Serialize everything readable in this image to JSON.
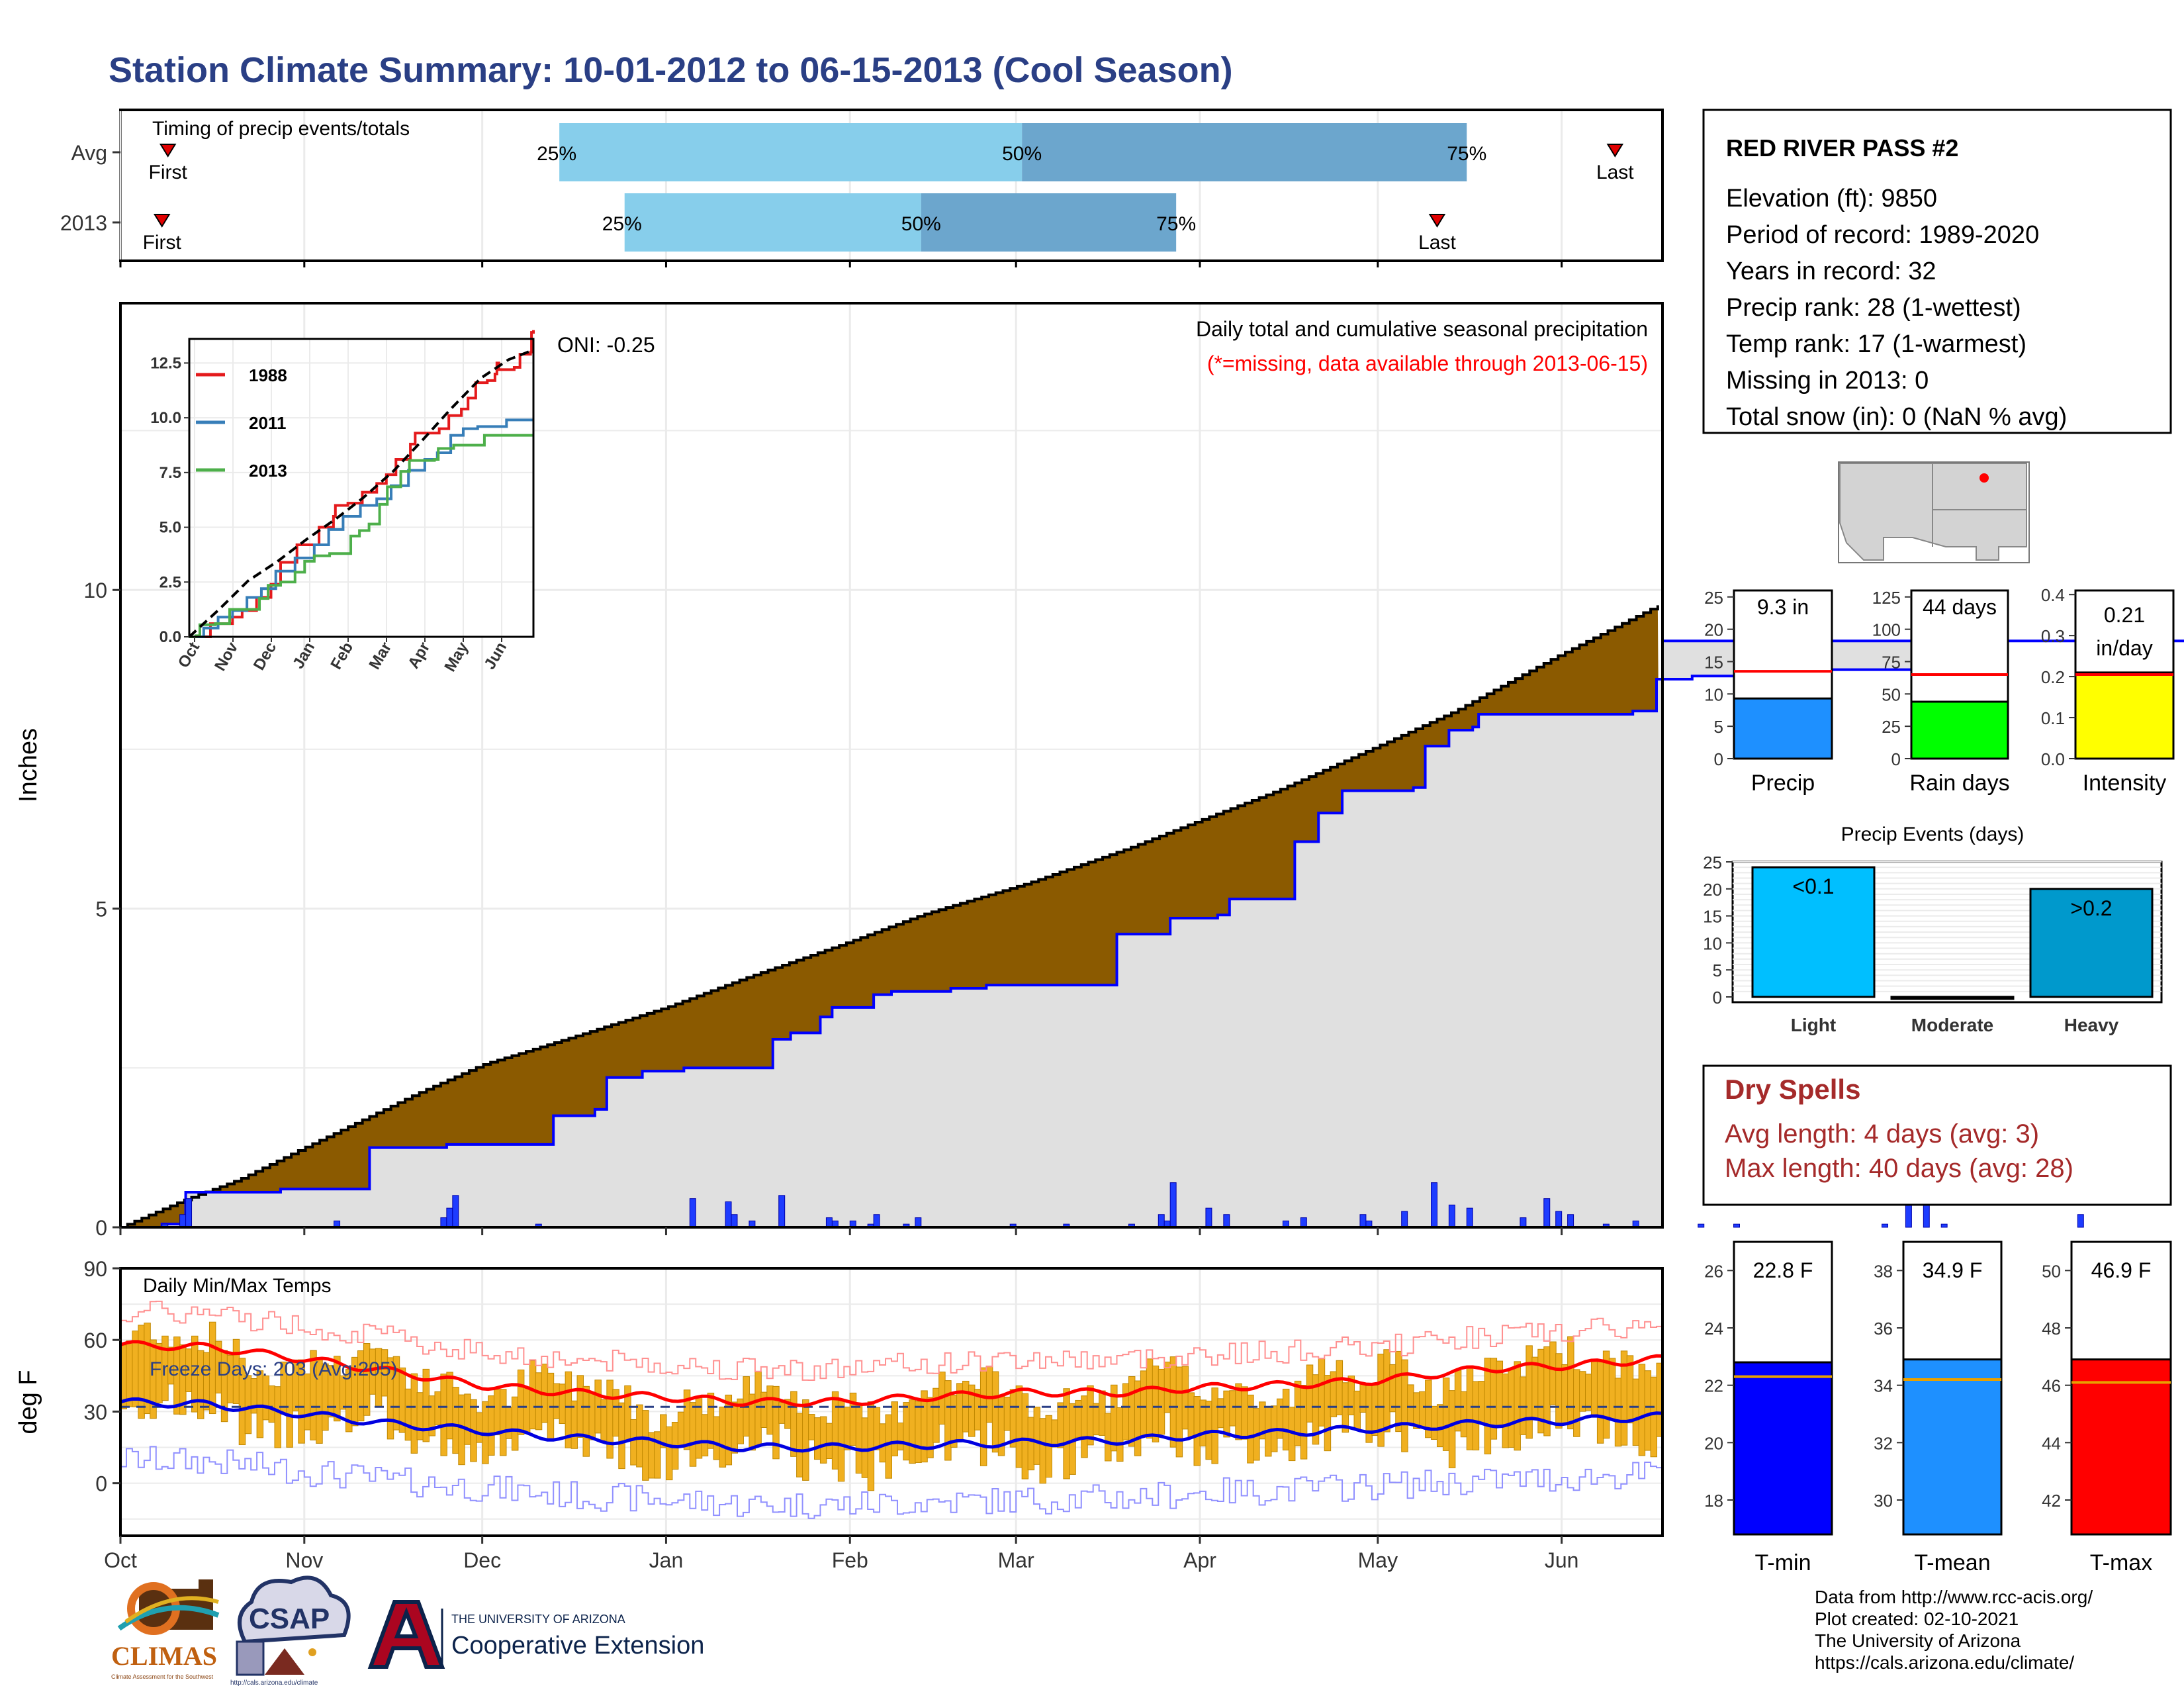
{
  "title": "Station Climate Summary: 10-01-2012 to 06-15-2013 (Cool Season)",
  "months": [
    "Oct",
    "Nov",
    "Dec",
    "Jan",
    "Feb",
    "Mar",
    "Apr",
    "May",
    "Jun"
  ],
  "colors": {
    "title": "#2A3F85",
    "dark_red": "#A52A2A",
    "brown": "#8B5A00",
    "blue_line": "#0000FF",
    "light_gray": "#E0E0E0",
    "gold": "#F0B020"
  },
  "timing": {
    "caption": "Timing of precip events/totals",
    "rows": [
      {
        "label": "Avg",
        "first_label": "First",
        "last_label": "Last",
        "p25_label": "25%",
        "p50_label": "50%",
        "p75_label": "75%",
        "first_day": 8,
        "p25_day": 74,
        "p50_day": 152,
        "p75_day": 227,
        "last_day": 252
      },
      {
        "label": "2013",
        "first_label": "First",
        "last_label": "Last",
        "p25_label": "25%",
        "p50_label": "50%",
        "p75_label": "75%",
        "first_day": 7,
        "p25_day": 85,
        "p50_day": 135,
        "p75_day": 178,
        "last_day": 222
      }
    ]
  },
  "precip_panel": {
    "ylabel": "Inches",
    "yticks": [
      0,
      5,
      10
    ],
    "ylim": [
      0,
      14.5
    ],
    "caption": "Daily total and cumulative seasonal precipitation",
    "missing_note": "(*=missing, data available through 2013-06-15)",
    "avg_cumulative": [
      [
        0,
        0
      ],
      [
        10,
        0.4
      ],
      [
        20,
        0.75
      ],
      [
        31,
        1.25
      ],
      [
        40,
        1.65
      ],
      [
        50,
        2.1
      ],
      [
        61,
        2.55
      ],
      [
        75,
        2.95
      ],
      [
        92,
        3.45
      ],
      [
        105,
        3.9
      ],
      [
        122,
        4.45
      ],
      [
        135,
        4.9
      ],
      [
        153,
        5.4
      ],
      [
        170,
        5.95
      ],
      [
        181,
        6.35
      ],
      [
        195,
        6.85
      ],
      [
        212,
        7.55
      ],
      [
        225,
        8.1
      ],
      [
        242,
        8.95
      ],
      [
        258,
        9.7
      ],
      [
        272,
        10.4
      ],
      [
        287,
        11.2
      ],
      [
        303,
        11.8
      ],
      [
        317,
        12.2
      ],
      [
        332,
        12.65
      ],
      [
        348,
        12.9
      ],
      [
        358,
        13.1
      ]
    ],
    "cumulative_2013": [
      [
        0,
        0
      ],
      [
        7,
        0.05
      ],
      [
        11,
        0.55
      ],
      [
        27,
        0.6
      ],
      [
        41,
        0.6
      ],
      [
        42,
        1.25
      ],
      [
        55,
        1.3
      ],
      [
        72,
        1.3
      ],
      [
        73,
        1.75
      ],
      [
        80,
        1.85
      ],
      [
        82,
        2.35
      ],
      [
        88,
        2.45
      ],
      [
        95,
        2.5
      ],
      [
        110,
        2.95
      ],
      [
        113,
        3.05
      ],
      [
        118,
        3.3
      ],
      [
        120,
        3.45
      ],
      [
        127,
        3.65
      ],
      [
        130,
        3.7
      ],
      [
        140,
        3.75
      ],
      [
        146,
        3.8
      ],
      [
        166,
        3.8
      ],
      [
        168,
        4.6
      ],
      [
        177,
        4.85
      ],
      [
        185,
        4.9
      ],
      [
        187,
        5.15
      ],
      [
        196,
        5.15
      ],
      [
        198,
        6.05
      ],
      [
        202,
        6.5
      ],
      [
        206,
        6.85
      ],
      [
        218,
        6.9
      ],
      [
        220,
        7.55
      ],
      [
        224,
        7.8
      ],
      [
        228,
        7.85
      ],
      [
        229,
        8.05
      ],
      [
        255,
        8.1
      ],
      [
        259,
        8.6
      ],
      [
        265,
        8.65
      ],
      [
        275,
        8.75
      ],
      [
        303,
        8.85
      ],
      [
        307,
        9.2
      ],
      [
        358,
        9.2
      ]
    ],
    "daily_2013": [
      [
        7,
        0.05
      ],
      [
        10,
        0.2
      ],
      [
        11,
        0.45
      ],
      [
        36,
        0.1
      ],
      [
        54,
        0.15
      ],
      [
        55,
        0.3
      ],
      [
        56,
        0.5
      ],
      [
        70,
        0.05
      ],
      [
        96,
        0.45
      ],
      [
        102,
        0.4
      ],
      [
        103,
        0.2
      ],
      [
        106,
        0.1
      ],
      [
        111,
        0.5
      ],
      [
        119,
        0.15
      ],
      [
        120,
        0.1
      ],
      [
        123,
        0.1
      ],
      [
        126,
        0.05
      ],
      [
        127,
        0.2
      ],
      [
        132,
        0.05
      ],
      [
        134,
        0.15
      ],
      [
        150,
        0.05
      ],
      [
        159,
        0.05
      ],
      [
        170,
        0.05
      ],
      [
        175,
        0.2
      ],
      [
        176,
        0.1
      ],
      [
        177,
        0.7
      ],
      [
        183,
        0.3
      ],
      [
        186,
        0.2
      ],
      [
        196,
        0.1
      ],
      [
        199,
        0.15
      ],
      [
        209,
        0.2
      ],
      [
        210,
        0.1
      ],
      [
        216,
        0.25
      ],
      [
        221,
        0.7
      ],
      [
        224,
        0.35
      ],
      [
        227,
        0.3
      ],
      [
        236,
        0.15
      ],
      [
        240,
        0.45
      ],
      [
        242,
        0.25
      ],
      [
        244,
        0.2
      ],
      [
        250,
        0.05
      ],
      [
        255,
        0.1
      ],
      [
        266,
        0.05
      ],
      [
        272,
        0.05
      ],
      [
        297,
        0.05
      ],
      [
        301,
        0.45
      ],
      [
        304,
        0.35
      ],
      [
        307,
        0.05
      ],
      [
        330,
        0.2
      ]
    ]
  },
  "oni_label": "ONI: -0.25",
  "inset": {
    "yticks": [
      "0.0",
      "2.5",
      "5.0",
      "7.5",
      "10.0",
      "12.5"
    ],
    "ytick_values": [
      0,
      2.5,
      5,
      7.5,
      10,
      12.5
    ],
    "months": [
      "Oct",
      "Nov",
      "Dec",
      "Jan",
      "Feb",
      "Mar",
      "Apr",
      "May",
      "Jun"
    ],
    "series": [
      {
        "name": "1988",
        "color": "#E41A1C",
        "values": [
          [
            0,
            0
          ],
          [
            20,
            0
          ],
          [
            22,
            0.6
          ],
          [
            45,
            0.9
          ],
          [
            55,
            1.2
          ],
          [
            70,
            1.8
          ],
          [
            85,
            2.4
          ],
          [
            95,
            3.4
          ],
          [
            112,
            4.2
          ],
          [
            135,
            5.0
          ],
          [
            150,
            5.5
          ],
          [
            152,
            6.0
          ],
          [
            165,
            6.1
          ],
          [
            180,
            6.6
          ],
          [
            195,
            7.0
          ],
          [
            205,
            7.4
          ],
          [
            215,
            8.1
          ],
          [
            230,
            8.8
          ],
          [
            235,
            9.3
          ],
          [
            250,
            9.3
          ],
          [
            260,
            9.5
          ],
          [
            270,
            10.1
          ],
          [
            283,
            10.4
          ],
          [
            290,
            10.9
          ],
          [
            298,
            11.6
          ],
          [
            310,
            11.7
          ],
          [
            318,
            12.0
          ],
          [
            320,
            12.5
          ],
          [
            322,
            12.2
          ],
          [
            338,
            12.3
          ],
          [
            344,
            12.9
          ],
          [
            355,
            13.0
          ],
          [
            356,
            13.9
          ],
          [
            358,
            14.0
          ]
        ]
      },
      {
        "name": "2011",
        "color": "#377EB8",
        "values": [
          [
            0,
            0
          ],
          [
            15,
            0.4
          ],
          [
            30,
            0.9
          ],
          [
            45,
            1.2
          ],
          [
            60,
            1.8
          ],
          [
            75,
            2.2
          ],
          [
            90,
            3.0
          ],
          [
            110,
            3.6
          ],
          [
            130,
            4.2
          ],
          [
            145,
            4.9
          ],
          [
            160,
            5.5
          ],
          [
            178,
            6.0
          ],
          [
            195,
            6.3
          ],
          [
            210,
            6.9
          ],
          [
            228,
            7.6
          ],
          [
            245,
            8.1
          ],
          [
            258,
            8.4
          ],
          [
            272,
            9.2
          ],
          [
            285,
            9.5
          ],
          [
            300,
            9.6
          ],
          [
            330,
            9.9
          ],
          [
            358,
            9.9
          ]
        ]
      },
      {
        "name": "2013",
        "color": "#4DAF4A",
        "values": [
          [
            0,
            0
          ],
          [
            7,
            0.05
          ],
          [
            11,
            0.55
          ],
          [
            27,
            0.6
          ],
          [
            42,
            1.25
          ],
          [
            73,
            1.75
          ],
          [
            82,
            2.35
          ],
          [
            95,
            2.5
          ],
          [
            110,
            2.95
          ],
          [
            120,
            3.45
          ],
          [
            130,
            3.7
          ],
          [
            146,
            3.8
          ],
          [
            168,
            4.6
          ],
          [
            177,
            4.85
          ],
          [
            187,
            5.15
          ],
          [
            198,
            6.05
          ],
          [
            206,
            6.85
          ],
          [
            220,
            7.55
          ],
          [
            229,
            8.05
          ],
          [
            255,
            8.1
          ],
          [
            259,
            8.6
          ],
          [
            275,
            8.75
          ],
          [
            307,
            9.2
          ],
          [
            358,
            9.2
          ]
        ]
      },
      {
        "name": "avg",
        "color": "#000000",
        "dashed": true,
        "values": [
          [
            0,
            0
          ],
          [
            31,
            1.25
          ],
          [
            61,
            2.55
          ],
          [
            92,
            3.45
          ],
          [
            122,
            4.45
          ],
          [
            153,
            5.4
          ],
          [
            181,
            6.35
          ],
          [
            212,
            7.55
          ],
          [
            242,
            8.95
          ],
          [
            272,
            10.4
          ],
          [
            303,
            11.8
          ],
          [
            332,
            12.65
          ],
          [
            358,
            13.1
          ]
        ]
      }
    ]
  },
  "temps_panel": {
    "ylabel": "deg F",
    "caption": "Daily Min/Max Temps",
    "freeze_label": "Freeze Days: 203 (Avg:205)",
    "yticks": [
      0,
      30,
      60,
      90
    ],
    "ylim": [
      -22,
      90
    ],
    "avg_tmax": [
      [
        0,
        58
      ],
      [
        15,
        57
      ],
      [
        31,
        52
      ],
      [
        45,
        47
      ],
      [
        61,
        41
      ],
      [
        75,
        38
      ],
      [
        92,
        36
      ],
      [
        105,
        34
      ],
      [
        122,
        34
      ],
      [
        135,
        36
      ],
      [
        153,
        38
      ],
      [
        170,
        38
      ],
      [
        181,
        40
      ],
      [
        195,
        41
      ],
      [
        212,
        43
      ],
      [
        230,
        48
      ],
      [
        242,
        49
      ],
      [
        260,
        52
      ],
      [
        272,
        54
      ],
      [
        290,
        56
      ],
      [
        303,
        58
      ],
      [
        320,
        62
      ],
      [
        332,
        64
      ],
      [
        345,
        67
      ],
      [
        358,
        70
      ]
    ],
    "avg_tmin": [
      [
        0,
        34
      ],
      [
        15,
        33
      ],
      [
        31,
        29
      ],
      [
        45,
        25
      ],
      [
        61,
        22
      ],
      [
        75,
        19
      ],
      [
        92,
        17
      ],
      [
        105,
        15
      ],
      [
        122,
        15
      ],
      [
        135,
        16
      ],
      [
        153,
        17
      ],
      [
        170,
        18
      ],
      [
        181,
        20
      ],
      [
        195,
        21
      ],
      [
        212,
        23
      ],
      [
        230,
        25
      ],
      [
        242,
        26
      ],
      [
        260,
        28
      ],
      [
        272,
        30
      ],
      [
        290,
        31
      ],
      [
        303,
        33
      ],
      [
        320,
        35
      ],
      [
        332,
        36
      ],
      [
        345,
        38
      ],
      [
        358,
        39
      ]
    ]
  },
  "station": {
    "name": "RED RIVER PASS #2",
    "lines": [
      "Elevation (ft): 9850",
      "Period of record: 1989-2020",
      "Years in record: 32",
      "Precip rank: 28 (1-wettest)",
      "Temp rank: 17 (1-warmest)",
      "Missing in 2013: 0",
      "Total snow (in): 0 (NaN % avg)"
    ]
  },
  "bars_top": [
    {
      "name": "Precip",
      "value_label": "9.3 in",
      "value": 9.3,
      "avg": 13.5,
      "yticks": [
        0,
        5,
        10,
        15,
        20,
        25
      ],
      "ymax": 26,
      "color": "#1E90FF"
    },
    {
      "name": "Rain days",
      "value_label": "44 days",
      "value": 44,
      "avg": 65,
      "yticks": [
        0,
        25,
        50,
        75,
        100,
        125
      ],
      "ymax": 130,
      "color": "#00FF00"
    },
    {
      "name": "Intensity",
      "value_label": "0.21 in/day",
      "value_line1": "0.21",
      "value_line2": "in/day",
      "value": 0.21,
      "avg": 0.205,
      "yticks": [
        "0.0",
        "0.1",
        "0.2",
        "0.3",
        "0.4"
      ],
      "ytick_values": [
        0,
        0.1,
        0.2,
        0.3,
        0.4
      ],
      "ymax": 0.41,
      "color": "#FFFF00"
    }
  ],
  "events": {
    "title": "Precip Events (days)",
    "yticks": [
      0,
      5,
      10,
      15,
      20,
      25
    ],
    "ymax": 25,
    "bars": [
      {
        "category": "Light",
        "label": "<0.1",
        "value": 24,
        "color": "#00BFFF"
      },
      {
        "category": "Moderate",
        "label": "",
        "value": 0,
        "color": "#1E90FF"
      },
      {
        "category": "Heavy",
        "label": ">0.2",
        "value": 20,
        "color": "#0099CC"
      }
    ]
  },
  "dry_spells": {
    "title": "Dry Spells",
    "avg_line": "Avg length: 4 days (avg: 3)",
    "max_line": "Max length: 40 days (avg: 28)"
  },
  "temps_bars": [
    {
      "name": "T-min",
      "value_label": "22.8 F",
      "value": 22.8,
      "avg": 22.3,
      "ymin": 16.8,
      "ymax": 27,
      "yticks": [
        18,
        20,
        22,
        24,
        26
      ],
      "color": "#0000FF"
    },
    {
      "name": "T-mean",
      "value_label": "34.9 F",
      "value": 34.9,
      "avg": 34.2,
      "ymin": 28.8,
      "ymax": 39,
      "yticks": [
        30,
        32,
        34,
        36,
        38
      ],
      "color": "#1E90FF"
    },
    {
      "name": "T-max",
      "value_label": "46.9 F",
      "value": 46.9,
      "avg": 46.1,
      "ymin": 40.8,
      "ymax": 51,
      "yticks": [
        42,
        44,
        46,
        48,
        50
      ],
      "color": "#FF0000"
    }
  ],
  "footer": {
    "lines": [
      "Data from http://www.rcc-acis.org/",
      "Plot created: 02-10-2021",
      "The University of Arizona",
      "https://cals.arizona.edu/climate/"
    ]
  },
  "logos": {
    "climas": "CLIMAS",
    "climas_sub": "Climate Assessment for the Southwest",
    "csap": "CSAP",
    "csap_url": "http://cals.arizona.edu/climate",
    "ua_small": "THE UNIVERSITY OF ARIZONA",
    "ua_big": "Cooperative Extension"
  }
}
